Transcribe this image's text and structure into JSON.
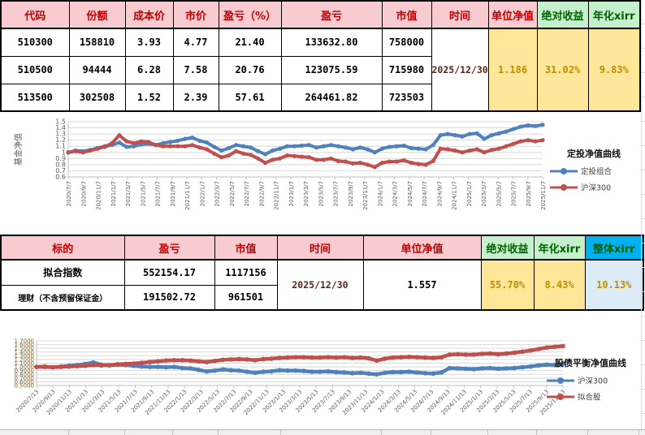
{
  "colors": {
    "header_pink": "#F8CBD1",
    "header_red_text": "#C00000",
    "green_bg": "#C6EFCE",
    "green_text": "#006100",
    "yellow_bg": "#FFE699",
    "yellow_text": "#BF8F00",
    "blue_header_bg": "#00B0F0",
    "lightblue_bg": "#DDEBF7",
    "date_text": "#5A2418",
    "series_blue": "#4F81BD",
    "series_red": "#C0504D"
  },
  "table1": {
    "headers": [
      "代码",
      "份额",
      "成本价",
      "市价",
      "盈亏（%）",
      "盈亏",
      "市值",
      "时间",
      "单位净值",
      "绝对收益",
      "年化xirr"
    ],
    "rows": [
      {
        "code": "510300",
        "shares": "158810",
        "cost": "3.93",
        "price": "4.77",
        "pl_pct": "21.40",
        "pl": "133632.80",
        "mv": "758000"
      },
      {
        "code": "510500",
        "shares": "94444",
        "cost": "6.28",
        "price": "7.58",
        "pl_pct": "20.76",
        "pl": "123075.59",
        "mv": "715980"
      },
      {
        "code": "513500",
        "shares": "302508",
        "cost": "1.52",
        "price": "2.39",
        "pl_pct": "57.61",
        "pl": "264461.82",
        "mv": "723503"
      }
    ],
    "merged": {
      "time": "2025/12/30",
      "nav": "1.186",
      "abs_return": "31.02%",
      "xirr": "9.83%"
    }
  },
  "table2": {
    "headers": [
      "标的",
      "盈亏",
      "市值",
      "时间",
      "单位净值",
      "绝对收益",
      "年化xirr",
      "整体xirr"
    ],
    "rows": [
      {
        "label": "拟合指数",
        "pl": "552154.17",
        "mv": "1117156"
      },
      {
        "label": "理财（不含预留保证金）",
        "pl": "191502.72",
        "mv": "961501"
      }
    ],
    "merged": {
      "time": "2025/12/30",
      "nav": "1.557",
      "abs_return": "55.70%",
      "xirr": "8.43%",
      "overall_xirr": "10.13%"
    }
  },
  "chart_data": [
    {
      "type": "line",
      "title": "定投净值曲线",
      "ylabel": "基金净值",
      "ylim": [
        0.6,
        1.5
      ],
      "grid": true,
      "legend_position": "right",
      "y_ticks": [
        "1.5",
        "1.4",
        "1.3",
        "1.2",
        "1.1",
        "1",
        "0.9",
        "0.8",
        "0.7",
        "0.6"
      ],
      "x_labels": [
        "2020/7/7",
        "2020/9/7",
        "2020/11/7",
        "2021/1/7",
        "2021/3/7",
        "2021/5/7",
        "2021/7/7",
        "2021/9/7",
        "2021/11/7",
        "2022/1/7",
        "2022/3/7",
        "2022/5/7",
        "2022/7/7",
        "2022/9/7",
        "2022/11/7",
        "2023/1/7",
        "2023/3/7",
        "2023/5/7",
        "2023/7/7",
        "2023/9/7",
        "2023/11/7",
        "2024/1/7",
        "2024/3/7",
        "2024/5/7",
        "2024/7/7",
        "2024/9/7",
        "2024/11/7",
        "2025/1/7",
        "2025/3/7",
        "2025/5/7",
        "2025/7/7",
        "2025/9/7",
        "2025/11/7"
      ],
      "series": [
        {
          "name": "定投组合",
          "color": "#4F81BD",
          "values": [
            1.0,
            1.03,
            1.02,
            1.04,
            1.07,
            1.1,
            1.12,
            1.16,
            1.09,
            1.1,
            1.13,
            1.14,
            1.12,
            1.15,
            1.17,
            1.19,
            1.22,
            1.24,
            1.19,
            1.16,
            1.09,
            1.03,
            1.07,
            1.12,
            1.1,
            1.08,
            1.02,
            0.97,
            1.03,
            1.06,
            1.1,
            1.1,
            1.11,
            1.12,
            1.08,
            1.1,
            1.12,
            1.1,
            1.08,
            1.05,
            1.08,
            1.05,
            1.0,
            1.06,
            1.09,
            1.1,
            1.11,
            1.07,
            1.06,
            1.05,
            1.12,
            1.28,
            1.3,
            1.28,
            1.26,
            1.3,
            1.31,
            1.22,
            1.28,
            1.31,
            1.34,
            1.38,
            1.42,
            1.44,
            1.43,
            1.45
          ]
        },
        {
          "name": "沪深300",
          "color": "#C0504D",
          "values": [
            1.0,
            1.02,
            1.0,
            1.03,
            1.06,
            1.09,
            1.15,
            1.28,
            1.18,
            1.15,
            1.18,
            1.17,
            1.12,
            1.1,
            1.1,
            1.1,
            1.1,
            1.12,
            1.08,
            1.05,
            0.98,
            0.92,
            0.95,
            1.02,
            0.98,
            0.96,
            0.9,
            0.83,
            0.88,
            0.9,
            0.95,
            0.94,
            0.93,
            0.92,
            0.88,
            0.88,
            0.9,
            0.86,
            0.85,
            0.82,
            0.83,
            0.8,
            0.76,
            0.83,
            0.85,
            0.85,
            0.87,
            0.83,
            0.81,
            0.8,
            0.86,
            1.06,
            1.05,
            1.03,
            1.0,
            1.03,
            1.05,
            1.0,
            1.04,
            1.06,
            1.1,
            1.14,
            1.18,
            1.2,
            1.18,
            1.2
          ]
        }
      ]
    },
    {
      "type": "line",
      "title": "股债平衡净值曲线",
      "ylabel": "",
      "ylim": [
        0.5,
        1.7
      ],
      "grid": true,
      "legend_position": "right",
      "y_ticks": [
        "1.7000",
        "1.6000",
        "1.5000",
        "1.4000",
        "1.3000",
        "1.2000",
        "1.1000",
        "1.0000",
        "0.9000",
        "0.8000",
        "0.7000",
        "0.6000",
        "0.5000"
      ],
      "x_labels": [
        "2020/7/13",
        "2020/9/13",
        "2020/11/13",
        "2021/1/13",
        "2021/3/13",
        "2021/5/13",
        "2021/7/13",
        "2021/9/13",
        "2021/11/13",
        "2022/1/13",
        "2022/3/13",
        "2022/5/13",
        "2022/7/13",
        "2022/9/13",
        "2022/11/13",
        "2023/1/13",
        "2023/3/13",
        "2023/5/13",
        "2023/7/13",
        "2023/9/13",
        "2023/11/13",
        "2024/1/13",
        "2024/3/13",
        "2024/5/13",
        "2024/7/13",
        "2024/9/13",
        "2024/11/13",
        "2025/1/13",
        "2025/3/13",
        "2025/5/13",
        "2025/7/13",
        "2025/9/13",
        "2025/11/13"
      ],
      "series": [
        {
          "name": "沪深300",
          "color": "#4F81BD",
          "values": [
            1.0,
            1.01,
            0.99,
            1.01,
            1.03,
            1.05,
            1.08,
            1.12,
            1.06,
            1.04,
            1.06,
            1.05,
            1.03,
            1.01,
            1.0,
            1.0,
            0.99,
            1.0,
            0.97,
            0.96,
            0.92,
            0.88,
            0.9,
            0.93,
            0.91,
            0.9,
            0.87,
            0.84,
            0.87,
            0.88,
            0.91,
            0.9,
            0.9,
            0.89,
            0.87,
            0.87,
            0.88,
            0.86,
            0.85,
            0.83,
            0.84,
            0.82,
            0.8,
            0.84,
            0.86,
            0.86,
            0.87,
            0.85,
            0.83,
            0.82,
            0.85,
            0.97,
            0.96,
            0.95,
            0.94,
            0.96,
            0.97,
            0.95,
            0.96,
            0.97,
            0.99,
            1.01,
            1.04,
            1.06,
            1.05,
            1.08
          ]
        },
        {
          "name": "拟合股",
          "color": "#C0504D",
          "values": [
            1.0,
            1.0,
            0.99,
            1.0,
            1.01,
            1.02,
            1.03,
            1.05,
            1.04,
            1.05,
            1.07,
            1.08,
            1.09,
            1.11,
            1.13,
            1.15,
            1.17,
            1.18,
            1.18,
            1.17,
            1.15,
            1.13,
            1.16,
            1.19,
            1.2,
            1.21,
            1.2,
            1.18,
            1.21,
            1.22,
            1.24,
            1.25,
            1.26,
            1.26,
            1.25,
            1.25,
            1.26,
            1.25,
            1.26,
            1.24,
            1.25,
            1.23,
            1.17,
            1.22,
            1.25,
            1.26,
            1.27,
            1.26,
            1.25,
            1.24,
            1.26,
            1.33,
            1.34,
            1.33,
            1.33,
            1.35,
            1.36,
            1.34,
            1.36,
            1.38,
            1.41,
            1.44,
            1.48,
            1.52,
            1.54,
            1.56
          ]
        }
      ]
    }
  ]
}
